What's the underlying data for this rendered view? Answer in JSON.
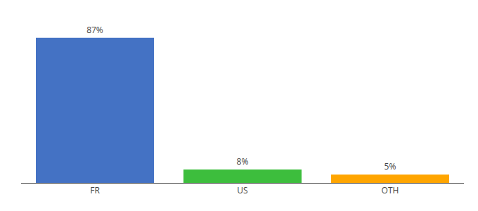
{
  "chart_data": {
    "type": "bar",
    "categories": [
      "FR",
      "US",
      "OTH"
    ],
    "values": [
      87,
      8,
      5
    ],
    "value_labels": [
      "87%",
      "8%",
      "5%"
    ],
    "colors": [
      "#4472C4",
      "#3DBE3D",
      "#FFA500"
    ],
    "data_labels": true,
    "ylim": [
      0,
      97
    ],
    "grid": false,
    "tick_labels": "x"
  }
}
